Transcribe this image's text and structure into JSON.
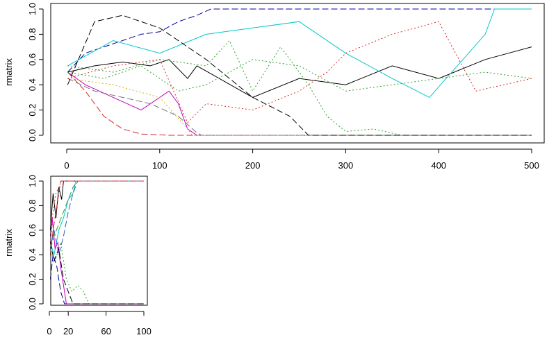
{
  "chart_data": [
    {
      "type": "line",
      "ylabel": "rmatrix",
      "xlim": [
        0,
        500
      ],
      "ylim": [
        0,
        1
      ],
      "x_ticks": [
        "0",
        "100",
        "200",
        "300",
        "400",
        "500"
      ],
      "y_ticks": [
        "0.0",
        "0.2",
        "0.4",
        "0.6",
        "0.8",
        "1.0"
      ],
      "grid": false,
      "legend": "none",
      "series": [
        {
          "color": "#000000",
          "dash": "solid",
          "x": [
            1,
            30,
            60,
            90,
            110,
            130,
            140,
            200,
            250,
            300,
            350,
            400,
            450,
            500
          ],
          "y": [
            0.5,
            0.55,
            0.58,
            0.55,
            0.6,
            0.45,
            0.55,
            0.3,
            0.45,
            0.4,
            0.55,
            0.45,
            0.6,
            0.7
          ]
        },
        {
          "color": "#d62728",
          "dash": "dashed",
          "x": [
            1,
            20,
            40,
            60,
            80,
            110,
            200,
            500
          ],
          "y": [
            0.5,
            0.35,
            0.15,
            0.05,
            0.01,
            0.0,
            0.0,
            0.0
          ]
        },
        {
          "color": "#2ca02c",
          "dash": "dotted",
          "x": [
            1,
            50,
            100,
            150,
            175,
            200,
            230,
            260,
            280,
            300,
            330,
            360,
            500
          ],
          "y": [
            0.55,
            0.5,
            0.6,
            0.55,
            0.75,
            0.35,
            0.7,
            0.4,
            0.15,
            0.03,
            0.05,
            0.0,
            0.0
          ]
        },
        {
          "color": "#0000a0",
          "dash": "dashed",
          "x": [
            1,
            20,
            40,
            60,
            80,
            100,
            120,
            140,
            155,
            500
          ],
          "y": [
            0.5,
            0.65,
            0.7,
            0.75,
            0.8,
            0.82,
            0.9,
            0.95,
            1.0,
            1.0
          ]
        },
        {
          "color": "#00c8c8",
          "dash": "solid",
          "x": [
            1,
            50,
            100,
            150,
            200,
            250,
            300,
            350,
            390,
            420,
            450,
            460,
            500
          ],
          "y": [
            0.55,
            0.75,
            0.65,
            0.8,
            0.85,
            0.9,
            0.65,
            0.45,
            0.3,
            0.55,
            0.8,
            1.0,
            1.0
          ]
        },
        {
          "color": "#c000c0",
          "dash": "solid",
          "x": [
            1,
            20,
            50,
            80,
            110,
            120,
            130,
            140,
            500
          ],
          "y": [
            0.5,
            0.4,
            0.3,
            0.2,
            0.35,
            0.25,
            0.05,
            0.0,
            0.0
          ]
        },
        {
          "color": "#d4b000",
          "dash": "dotted",
          "x": [
            1,
            50,
            100,
            130,
            135,
            500
          ],
          "y": [
            0.45,
            0.4,
            0.3,
            0.05,
            0.0,
            0.0
          ]
        },
        {
          "color": "#707070",
          "dash": "dashed",
          "x": [
            1,
            30,
            60,
            90,
            120,
            140,
            145,
            500
          ],
          "y": [
            0.45,
            0.35,
            0.3,
            0.25,
            0.15,
            0.02,
            0.0,
            0.0
          ]
        },
        {
          "color": "#000000",
          "dash": "dashed",
          "x": [
            1,
            30,
            60,
            100,
            150,
            200,
            240,
            260,
            500
          ],
          "y": [
            0.4,
            0.9,
            0.95,
            0.85,
            0.6,
            0.3,
            0.15,
            0.0,
            0.0
          ]
        },
        {
          "color": "#d62728",
          "dash": "dotted",
          "x": [
            1,
            50,
            100,
            130,
            150,
            200,
            250,
            280,
            300,
            350,
            400,
            440,
            500
          ],
          "y": [
            0.45,
            0.55,
            0.6,
            0.1,
            0.25,
            0.2,
            0.35,
            0.5,
            0.65,
            0.8,
            0.9,
            0.35,
            0.45
          ]
        },
        {
          "color": "#2ca02c",
          "dash": "dotted",
          "x": [
            1,
            40,
            80,
            120,
            150,
            200,
            250,
            300,
            350,
            400,
            450,
            500
          ],
          "y": [
            0.5,
            0.45,
            0.55,
            0.35,
            0.4,
            0.6,
            0.55,
            0.35,
            0.4,
            0.45,
            0.5,
            0.45
          ]
        }
      ]
    },
    {
      "type": "line",
      "ylabel": "rmatrix",
      "xlim": [
        0,
        100
      ],
      "ylim": [
        0,
        1
      ],
      "x_ticks": [
        "0",
        "20",
        "60",
        "100"
      ],
      "y_ticks": [
        "0.0",
        "0.2",
        "0.4",
        "0.6",
        "0.8",
        "1.0"
      ],
      "grid": false,
      "legend": "none",
      "series": [
        {
          "color": "#000000",
          "dash": "solid",
          "x": [
            1,
            4,
            7,
            10,
            13,
            15,
            100
          ],
          "y": [
            0.6,
            0.9,
            0.7,
            0.95,
            0.85,
            1.0,
            1.0
          ]
        },
        {
          "color": "#d62728",
          "dash": "dotted",
          "x": [
            1,
            4,
            7,
            10,
            13,
            100
          ],
          "y": [
            0.5,
            0.75,
            0.9,
            0.95,
            1.0,
            1.0
          ]
        },
        {
          "color": "#2ca02c",
          "dash": "dotted",
          "x": [
            1,
            6,
            12,
            18,
            24,
            30,
            36,
            42,
            100
          ],
          "y": [
            0.4,
            0.35,
            0.5,
            0.2,
            0.1,
            0.15,
            0.1,
            0.0,
            0.0
          ]
        },
        {
          "color": "#0000a0",
          "dash": "dashed",
          "x": [
            1,
            4,
            8,
            12,
            16,
            100
          ],
          "y": [
            0.2,
            0.4,
            0.3,
            0.1,
            0.0,
            0.0
          ]
        },
        {
          "color": "#00c8c8",
          "dash": "solid",
          "x": [
            1,
            5,
            10,
            15,
            20,
            25,
            28,
            100
          ],
          "y": [
            0.5,
            0.4,
            0.6,
            0.7,
            0.85,
            0.9,
            1.0,
            1.0
          ]
        },
        {
          "color": "#c000c0",
          "dash": "solid",
          "x": [
            1,
            3,
            6,
            9,
            12,
            15,
            18,
            100
          ],
          "y": [
            0.55,
            0.7,
            0.45,
            0.5,
            0.3,
            0.15,
            0.0,
            0.0
          ]
        },
        {
          "color": "#2060c0",
          "dash": "dashed",
          "x": [
            1,
            5,
            10,
            15,
            20,
            25,
            30,
            100
          ],
          "y": [
            0.45,
            0.6,
            0.4,
            0.55,
            0.75,
            0.9,
            1.0,
            1.0
          ]
        },
        {
          "color": "#000000",
          "dash": "dashed",
          "x": [
            1,
            5,
            10,
            15,
            20,
            25,
            100
          ],
          "y": [
            0.5,
            0.35,
            0.45,
            0.2,
            0.1,
            0.0,
            0.0
          ]
        },
        {
          "color": "#2ca02c",
          "dash": "dashed",
          "x": [
            1,
            5,
            10,
            15,
            20,
            25,
            30,
            100
          ],
          "y": [
            0.45,
            0.55,
            0.65,
            0.75,
            0.85,
            0.95,
            1.0,
            1.0
          ]
        },
        {
          "color": "#d62728",
          "dash": "dashed",
          "x": [
            1,
            4,
            8,
            12,
            100
          ],
          "y": [
            0.4,
            0.6,
            0.8,
            1.0,
            1.0
          ]
        }
      ]
    }
  ]
}
